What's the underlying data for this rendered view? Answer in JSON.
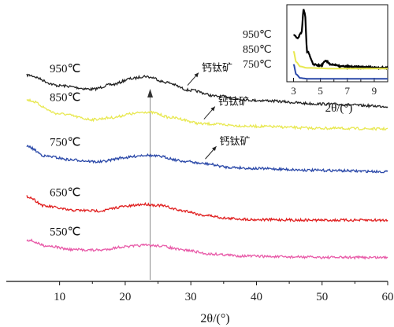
{
  "chart_data": [
    {
      "type": "line",
      "xlabel": "2θ/(°)",
      "xlim": [
        5,
        60
      ],
      "xticks": [
        10,
        20,
        30,
        40,
        50,
        60
      ],
      "y_axis": "none",
      "grid": false,
      "series": [
        {
          "name": "950℃",
          "color": "#222222",
          "points": [
            [
              5,
              0.86
            ],
            [
              10,
              0.68
            ],
            [
              15,
              0.62
            ],
            [
              18,
              0.7
            ],
            [
              21,
              0.8
            ],
            [
              23,
              0.84
            ],
            [
              24,
              0.82
            ],
            [
              26,
              0.74
            ],
            [
              30,
              0.6
            ],
            [
              34,
              0.5
            ],
            [
              40,
              0.43
            ],
            [
              50,
              0.37
            ],
            [
              60,
              0.33
            ]
          ]
        },
        {
          "name": "850℃",
          "color": "#e8e850",
          "points": [
            [
              5,
              0.86
            ],
            [
              10,
              0.64
            ],
            [
              15,
              0.55
            ],
            [
              18,
              0.58
            ],
            [
              21,
              0.64
            ],
            [
              23,
              0.67
            ],
            [
              24,
              0.66
            ],
            [
              27,
              0.58
            ],
            [
              32,
              0.48
            ],
            [
              40,
              0.44
            ],
            [
              50,
              0.41
            ],
            [
              60,
              0.4
            ]
          ]
        },
        {
          "name": "750℃",
          "color": "#2a48a8",
          "points": [
            [
              5,
              0.88
            ],
            [
              8,
              0.72
            ],
            [
              12,
              0.66
            ],
            [
              16,
              0.63
            ],
            [
              20,
              0.7
            ],
            [
              23,
              0.74
            ],
            [
              25,
              0.72
            ],
            [
              29,
              0.64
            ],
            [
              32,
              0.6
            ],
            [
              36,
              0.54
            ],
            [
              40,
              0.52
            ],
            [
              50,
              0.49
            ],
            [
              60,
              0.47
            ]
          ]
        },
        {
          "name": "650℃",
          "color": "#e02020",
          "points": [
            [
              5,
              0.9
            ],
            [
              8,
              0.72
            ],
            [
              12,
              0.65
            ],
            [
              16,
              0.64
            ],
            [
              20,
              0.72
            ],
            [
              23,
              0.76
            ],
            [
              25,
              0.74
            ],
            [
              29,
              0.64
            ],
            [
              32,
              0.56
            ],
            [
              36,
              0.5
            ],
            [
              40,
              0.48
            ],
            [
              50,
              0.47
            ],
            [
              60,
              0.47
            ]
          ]
        },
        {
          "name": "550℃",
          "color": "#e85aa8",
          "points": [
            [
              5,
              0.82
            ],
            [
              8,
              0.7
            ],
            [
              12,
              0.62
            ],
            [
              16,
              0.61
            ],
            [
              20,
              0.68
            ],
            [
              23,
              0.71
            ],
            [
              25,
              0.7
            ],
            [
              29,
              0.61
            ],
            [
              33,
              0.53
            ],
            [
              38,
              0.49
            ],
            [
              45,
              0.47
            ],
            [
              52,
              0.46
            ],
            [
              60,
              0.46
            ]
          ]
        }
      ],
      "reference_line_x": 23.8,
      "annotations": [
        {
          "text": "钙钛矿",
          "series": "950℃",
          "x": 29.5
        },
        {
          "text": "钙钛矿",
          "series": "850℃",
          "x": 32.0
        },
        {
          "text": "钙钛矿",
          "series": "750℃",
          "x": 32.2
        }
      ]
    },
    {
      "type": "line",
      "position": "inset top-right",
      "xlabel": "2θ/(°)",
      "xlim": [
        2.5,
        10
      ],
      "xticks": [
        3,
        5,
        7,
        9
      ],
      "series": [
        {
          "name": "950℃",
          "color": "#000000",
          "points": [
            [
              3.0,
              0.62
            ],
            [
              3.3,
              0.58
            ],
            [
              3.6,
              0.66
            ],
            [
              3.75,
              0.98
            ],
            [
              3.85,
              0.92
            ],
            [
              4.0,
              0.4
            ],
            [
              4.5,
              0.22
            ],
            [
              5.0,
              0.2
            ],
            [
              5.4,
              0.26
            ],
            [
              5.8,
              0.22
            ],
            [
              6.5,
              0.19
            ],
            [
              8,
              0.18
            ],
            [
              10,
              0.17
            ]
          ]
        },
        {
          "name": "850℃",
          "color": "#e8e850",
          "points": [
            [
              3.0,
              0.4
            ],
            [
              3.2,
              0.25
            ],
            [
              3.5,
              0.19
            ],
            [
              4,
              0.17
            ],
            [
              6,
              0.16
            ],
            [
              8,
              0.16
            ],
            [
              10,
              0.16
            ]
          ]
        },
        {
          "name": "750℃",
          "color": "#2a48a8",
          "points": [
            [
              3.0,
              0.22
            ],
            [
              3.2,
              0.08
            ],
            [
              3.5,
              0.03
            ],
            [
              4,
              0.02
            ],
            [
              6,
              0.02
            ],
            [
              8,
              0.02
            ],
            [
              10,
              0.02
            ]
          ]
        }
      ]
    }
  ]
}
